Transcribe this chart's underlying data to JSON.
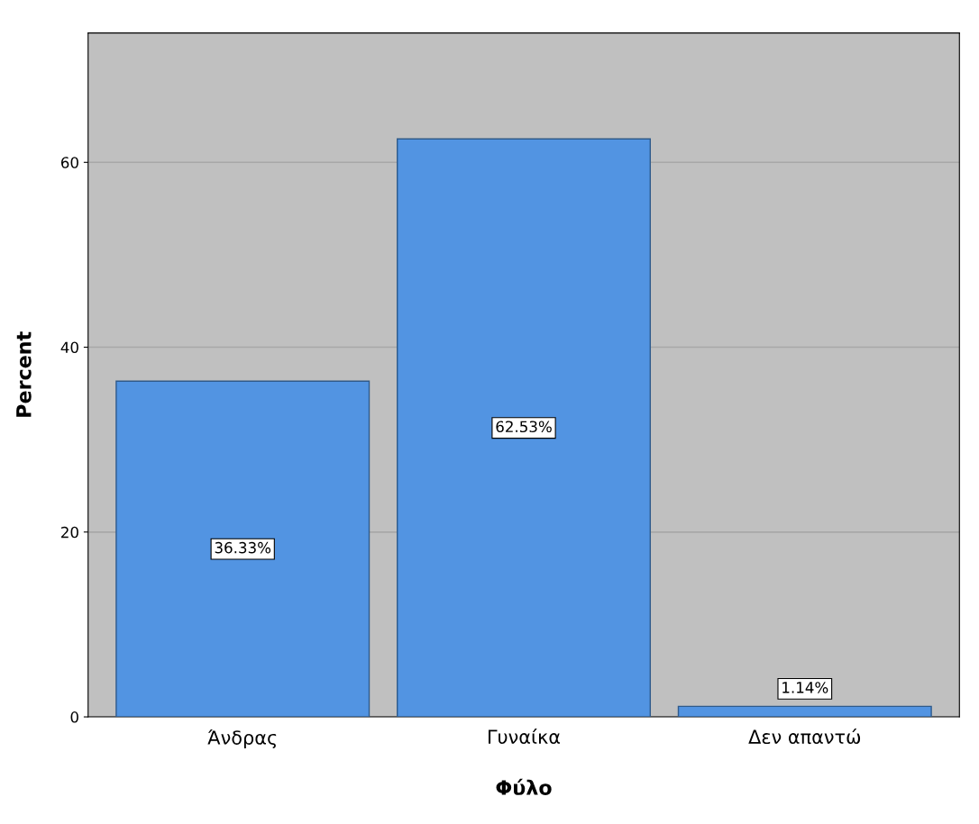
{
  "chart_data": {
    "type": "bar",
    "xlabel": "Φύλο",
    "ylabel": "Percent",
    "categories": [
      "Άνδρας",
      "Γυναίκα",
      "Δεν απαντώ"
    ],
    "values": [
      36.33,
      62.53,
      1.14
    ],
    "value_labels": [
      "36.33%",
      "62.53%",
      "1.14%"
    ],
    "color": "#5294e2",
    "ylim": [
      0,
      74
    ],
    "yticks": [
      0,
      20,
      40,
      60
    ],
    "grid": "y"
  }
}
